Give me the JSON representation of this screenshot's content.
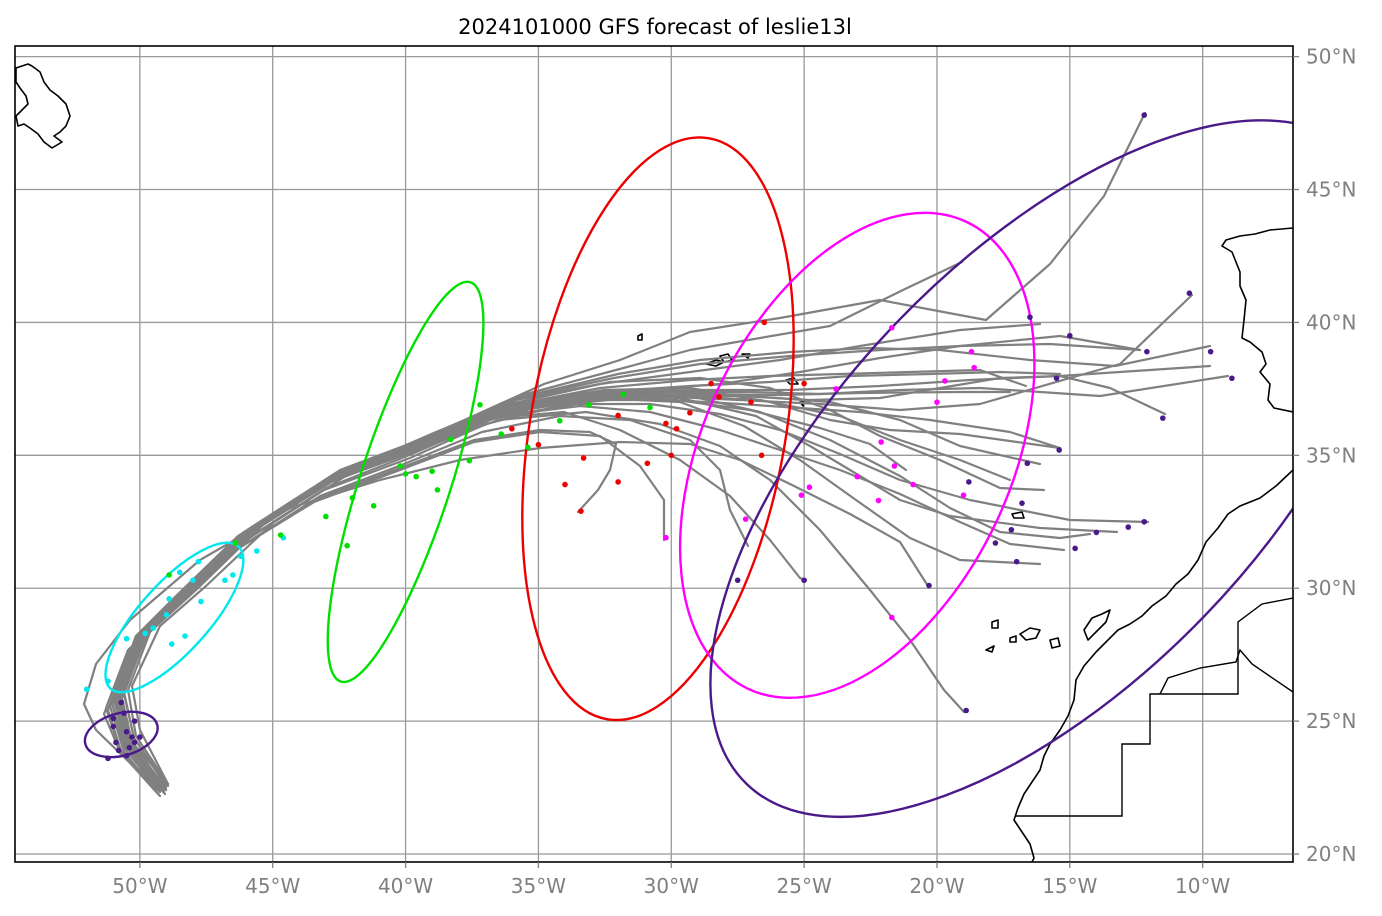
{
  "title": "2024101000 GFS forecast of leslie13l",
  "axes": {
    "lon_ticks": [
      {
        "value": -50,
        "label": "50°W"
      },
      {
        "value": -45,
        "label": "45°W"
      },
      {
        "value": -40,
        "label": "40°W"
      },
      {
        "value": -35,
        "label": "35°W"
      },
      {
        "value": -30,
        "label": "30°W"
      },
      {
        "value": -25,
        "label": "25°W"
      },
      {
        "value": -20,
        "label": "20°W"
      },
      {
        "value": -15,
        "label": "15°W"
      },
      {
        "value": -10,
        "label": "10°W"
      }
    ],
    "lat_ticks": [
      {
        "value": 50,
        "label": "50°N"
      },
      {
        "value": 45,
        "label": "45°N"
      },
      {
        "value": 40,
        "label": "40°N"
      },
      {
        "value": 35,
        "label": "35°N"
      },
      {
        "value": 30,
        "label": "30°N"
      },
      {
        "value": 25,
        "label": "25°N"
      },
      {
        "value": 20,
        "label": "20°N"
      }
    ],
    "extent": {
      "lon": [
        -54.7,
        -6.6
      ],
      "lat": [
        19.7,
        50.4
      ]
    },
    "grid": true
  },
  "colors": {
    "track": "#808080",
    "day1": "#4b1a8a",
    "day2": "#00e8ee",
    "day3": "#00e000",
    "day4": "#ee0000",
    "day5": "#ff00ff",
    "day6": "#4b1a8a"
  },
  "ellipses": [
    {
      "name": "day1",
      "cx": -50.7,
      "cy": 24.5,
      "rx": 0.8,
      "ry": 1.4,
      "rot": 15
    },
    {
      "name": "day2",
      "cx": -48.7,
      "cy": 28.9,
      "rx": 1.3,
      "ry": 3.6,
      "rot": 48
    },
    {
      "name": "day3",
      "cx": -40.0,
      "cy": 34.0,
      "rx": 1.7,
      "ry": 7.9,
      "rot": 72
    },
    {
      "name": "day4",
      "cx": -30.5,
      "cy": 36.0,
      "rx": 4.8,
      "ry": 11.1,
      "rot": 80
    },
    {
      "name": "day5",
      "cx": -23.0,
      "cy": 35.0,
      "rx": 5.8,
      "ry": 9.7,
      "rot": 65
    },
    {
      "name": "day6",
      "cx": -15.7,
      "cy": 34.5,
      "rx": 8.0,
      "ry": 16.5,
      "rot": 46
    }
  ],
  "points": {
    "day1": [
      [
        -50.5,
        24.6
      ],
      [
        -50.2,
        25.0
      ],
      [
        -50.9,
        24.2
      ],
      [
        -50.4,
        24.0
      ],
      [
        -51.0,
        24.8
      ],
      [
        -50.6,
        25.3
      ],
      [
        -50.8,
        23.9
      ],
      [
        -50.3,
        24.4
      ],
      [
        -50.7,
        25.7
      ],
      [
        -50.0,
        24.4
      ],
      [
        -51.2,
        23.6
      ],
      [
        -50.5,
        23.7
      ],
      [
        -51.0,
        25.1
      ],
      [
        -50.2,
        24.2
      ]
    ],
    "day2": [
      [
        -52.0,
        26.2
      ],
      [
        -51.2,
        26.5
      ],
      [
        -50.5,
        28.1
      ],
      [
        -49.5,
        28.5
      ],
      [
        -49.0,
        29.0
      ],
      [
        -48.3,
        28.2
      ],
      [
        -47.7,
        29.5
      ],
      [
        -46.8,
        30.3
      ],
      [
        -48.5,
        30.6
      ],
      [
        -47.8,
        31.0
      ],
      [
        -46.2,
        31.2
      ],
      [
        -44.6,
        31.9
      ],
      [
        -49.8,
        28.3
      ],
      [
        -48.8,
        27.9
      ],
      [
        -48.0,
        30.3
      ],
      [
        -46.5,
        30.5
      ],
      [
        -45.6,
        31.4
      ],
      [
        -48.9,
        29.6
      ]
    ],
    "day3": [
      [
        -48.9,
        30.5
      ],
      [
        -46.4,
        31.7
      ],
      [
        -44.7,
        32.0
      ],
      [
        -43.0,
        32.7
      ],
      [
        -42.2,
        31.6
      ],
      [
        -42.0,
        33.4
      ],
      [
        -41.2,
        33.1
      ],
      [
        -40.2,
        34.6
      ],
      [
        -39.6,
        34.2
      ],
      [
        -38.8,
        33.7
      ],
      [
        -38.3,
        35.6
      ],
      [
        -37.6,
        34.8
      ],
      [
        -37.2,
        36.9
      ],
      [
        -36.4,
        35.8
      ],
      [
        -35.4,
        35.3
      ],
      [
        -34.2,
        36.3
      ],
      [
        -33.1,
        36.9
      ],
      [
        -31.8,
        37.3
      ],
      [
        -30.8,
        36.8
      ],
      [
        -40.0,
        34.3
      ],
      [
        -39.0,
        34.4
      ]
    ],
    "day4": [
      [
        -36.0,
        36.0
      ],
      [
        -35.0,
        35.4
      ],
      [
        -33.3,
        34.9
      ],
      [
        -34.0,
        33.9
      ],
      [
        -32.0,
        34.0
      ],
      [
        -30.9,
        34.7
      ],
      [
        -30.0,
        35.0
      ],
      [
        -29.3,
        36.6
      ],
      [
        -29.8,
        36.0
      ],
      [
        -28.2,
        37.2
      ],
      [
        -27.0,
        37.0
      ],
      [
        -26.6,
        35.0
      ],
      [
        -25.0,
        37.7
      ],
      [
        -26.5,
        40.0
      ],
      [
        -33.4,
        32.9
      ],
      [
        -32.0,
        36.5
      ],
      [
        -30.2,
        36.2
      ],
      [
        -28.5,
        37.7
      ]
    ],
    "day5": [
      [
        -30.2,
        31.9
      ],
      [
        -27.2,
        32.6
      ],
      [
        -25.1,
        33.5
      ],
      [
        -24.8,
        33.8
      ],
      [
        -23.8,
        37.5
      ],
      [
        -23.0,
        34.2
      ],
      [
        -22.2,
        33.3
      ],
      [
        -21.6,
        34.6
      ],
      [
        -20.9,
        33.9
      ],
      [
        -20.0,
        37.0
      ],
      [
        -19.7,
        37.8
      ],
      [
        -18.7,
        38.9
      ],
      [
        -21.7,
        39.8
      ],
      [
        -19.0,
        33.5
      ],
      [
        -22.1,
        35.5
      ],
      [
        -21.7,
        28.9
      ],
      [
        -18.6,
        38.3
      ]
    ],
    "day6": [
      [
        -12.2,
        47.8
      ],
      [
        -10.5,
        41.1
      ],
      [
        -9.7,
        38.9
      ],
      [
        -8.9,
        37.9
      ],
      [
        -12.1,
        38.9
      ],
      [
        -15.0,
        39.5
      ],
      [
        -16.5,
        40.2
      ],
      [
        -15.5,
        37.9
      ],
      [
        -11.5,
        36.4
      ],
      [
        -15.4,
        35.2
      ],
      [
        -16.6,
        34.7
      ],
      [
        -20.3,
        30.1
      ],
      [
        -18.8,
        34.0
      ],
      [
        -16.8,
        33.2
      ],
      [
        -17.2,
        32.2
      ],
      [
        -17.0,
        31.0
      ],
      [
        -14.8,
        31.5
      ],
      [
        -14.0,
        32.1
      ],
      [
        -12.8,
        32.3
      ],
      [
        -27.5,
        30.3
      ],
      [
        -25.0,
        30.3
      ],
      [
        -18.9,
        25.4
      ],
      [
        -12.2,
        32.5
      ],
      [
        -17.8,
        31.7
      ]
    ]
  }
}
